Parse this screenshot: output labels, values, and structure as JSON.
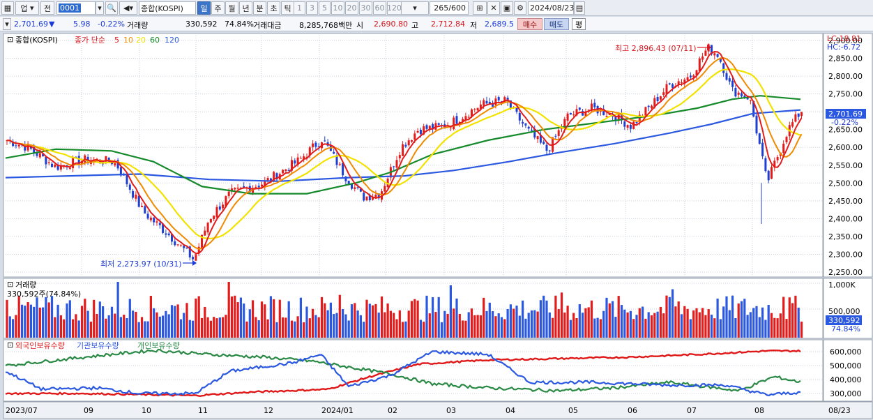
{
  "toolbar": {
    "market_dropdown": "업",
    "prev_label": "전",
    "code_value": "0001",
    "search_icon": "search-icon",
    "sound_icon": "speaker-icon",
    "name_value": "종합(KOSPI)",
    "periods": [
      "일",
      "주",
      "월",
      "년",
      "분",
      "초",
      "틱"
    ],
    "active_period": "일",
    "intervals": [
      "1",
      "3",
      "5",
      "10",
      "20",
      "30",
      "60",
      "120"
    ],
    "count_value": "265",
    "count_total": "/600",
    "date_value": "2024/08/23"
  },
  "info": {
    "price": "2,701.69",
    "change": "5.98",
    "change_pct": "-0.22%",
    "volume_label": "거래량",
    "volume": "330,592",
    "volume_pct": "74.84%",
    "amount_label": "거래대금",
    "amount": "8,285,768백만",
    "open_label": "시",
    "open": "2,690.80",
    "high_label": "고",
    "high": "2,712.84",
    "low_label": "저",
    "low": "2,689.5",
    "buy_label": "매수",
    "sell_label": "매도",
    "eval_label": "평"
  },
  "price_panel": {
    "title": "종합(KOSPI)",
    "ma_label": "종가 단순",
    "ma_periods": [
      "5",
      "10",
      "20",
      "60",
      "120"
    ],
    "ma_colors": [
      "#e31b1b",
      "#f08a00",
      "#f2e200",
      "#158a2a",
      "#2b58e0"
    ],
    "lc": "LC:18.81",
    "hc": "HC:-6.72",
    "high_note": "최고 2,896.43 (07/11)",
    "low_note": "최저 2,273.97 (10/31)",
    "last_price": "2,701.69",
    "last_change": "-0.22%",
    "y_ticks": [
      "2,900.00",
      "2,850.00",
      "2,800.00",
      "2,750.00",
      "2,700.00",
      "2,650.00",
      "2,600.00",
      "2,550.00",
      "2,500.00",
      "2,450.00",
      "2,400.00",
      "2,350.00",
      "2,300.00",
      "2,250.00"
    ]
  },
  "volume_panel": {
    "title": "거래량",
    "note": "330,592주(74.84%)",
    "y_ticks": [
      "1,000K",
      "500,000"
    ],
    "last_value": "330,592",
    "last_pct": "74.84%"
  },
  "holding_panel": {
    "legends": [
      "외국인보유수량",
      "기관보유수량",
      "개인보유수량"
    ],
    "colors": [
      "#e01818",
      "#2b58e0",
      "#2a8a45"
    ],
    "y_ticks": [
      "600,000",
      "500,000",
      "400,000",
      "300,000"
    ]
  },
  "x_labels": [
    "2023/07",
    "09",
    "10",
    "11",
    "12",
    "2024/01",
    "02",
    "03",
    "04",
    "05",
    "06",
    "07",
    "08",
    "08/23"
  ],
  "chart_data": {
    "type": "candlestick",
    "title": "종합(KOSPI)",
    "ylim": [
      2250,
      2900
    ],
    "ma_periods": [
      5,
      10,
      20,
      60,
      120
    ],
    "keypoints": [
      {
        "x": "2023/07",
        "close": 2620
      },
      {
        "x": "09",
        "close": 2560
      },
      {
        "x": "10",
        "close": 2420
      },
      {
        "x": "10/31",
        "close": 2273.97
      },
      {
        "x": "11",
        "close": 2490
      },
      {
        "x": "12",
        "close": 2560
      },
      {
        "x": "2024/01",
        "close": 2620
      },
      {
        "x": "01",
        "close": 2460
      },
      {
        "x": "02",
        "close": 2650
      },
      {
        "x": "03",
        "close": 2740
      },
      {
        "x": "04",
        "close": 2600
      },
      {
        "x": "05",
        "close": 2730
      },
      {
        "x": "06",
        "close": 2660
      },
      {
        "x": "07/11",
        "close": 2896.43
      },
      {
        "x": "08",
        "close": 2440
      },
      {
        "x": "08/23",
        "close": 2701.69
      }
    ],
    "last": {
      "open": 2690.8,
      "high": 2712.84,
      "low": 2689.5,
      "close": 2701.69,
      "volume": 330592
    }
  }
}
